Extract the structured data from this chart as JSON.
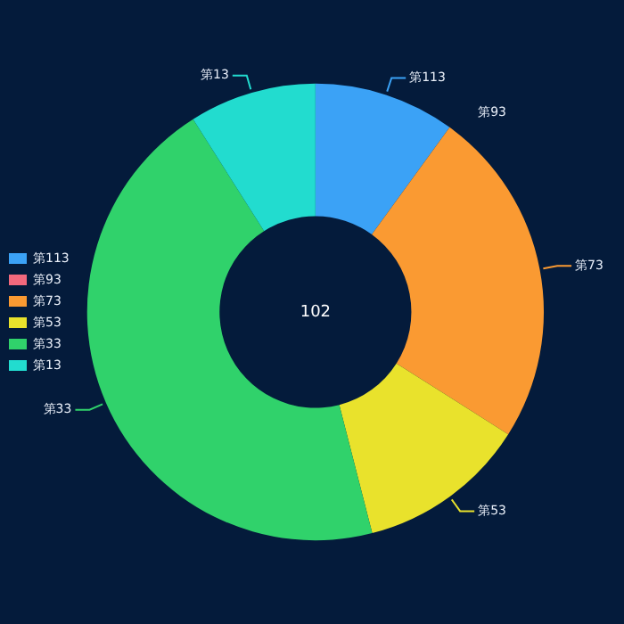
{
  "chart_data": {
    "type": "donut",
    "categories": [
      "第113",
      "第93",
      "第73",
      "第53",
      "第33",
      "第13"
    ],
    "values": [
      10,
      0,
      24,
      12,
      45,
      9
    ],
    "colors": [
      "#3ba2f6",
      "#f2697d",
      "#fa9a32",
      "#e9e22c",
      "#30d26b",
      "#22dccf"
    ],
    "annotations": [
      "102"
    ],
    "legend": "left"
  }
}
